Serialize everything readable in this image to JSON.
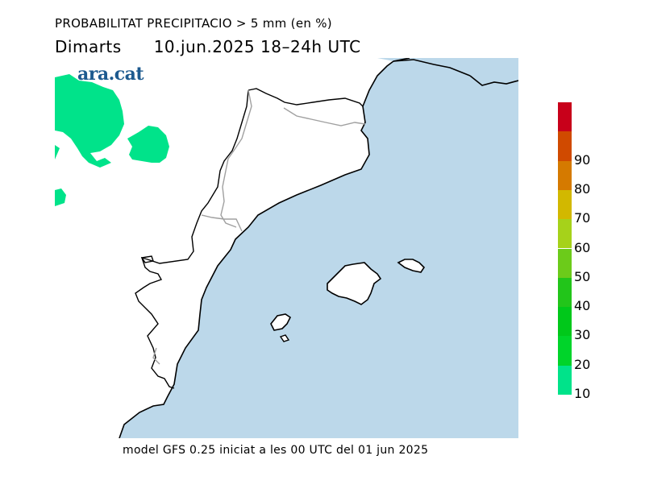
{
  "header": {
    "title": "PROBABILITAT PRECIPITACIO > 5 mm (en %)",
    "day": "Dimarts",
    "date_range": "10.jun.2025  18–24h  UTC"
  },
  "logo": {
    "text": "ara.cat"
  },
  "footer": {
    "text": "model GFS 0.25 iniciat a les 00 UTC del 01 jun 2025"
  },
  "colors": {
    "sea": "#bcd8ea",
    "land": "#ffffff",
    "precip_10": "#00e38a",
    "coast": "#000000",
    "border": "#a0a0a0"
  },
  "legend": {
    "bins": [
      {
        "label": "10",
        "color": "#00e38a"
      },
      {
        "label": "20",
        "color": "#00d42a"
      },
      {
        "label": "30",
        "color": "#00c81a"
      },
      {
        "label": "40",
        "color": "#22c51a"
      },
      {
        "label": "50",
        "color": "#6ccb1a"
      },
      {
        "label": "60",
        "color": "#a6d21a"
      },
      {
        "label": "70",
        "color": "#d2b800"
      },
      {
        "label": "80",
        "color": "#d57a00"
      },
      {
        "label": "90",
        "color": "#d04a00"
      },
      {
        "label": "",
        "color": "#c8001a"
      }
    ]
  }
}
